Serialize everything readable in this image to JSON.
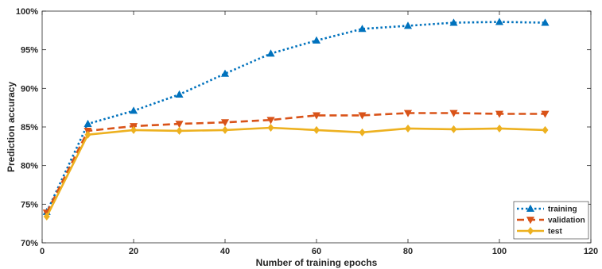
{
  "chart_data": {
    "type": "line",
    "xlabel": "Number of training epochs",
    "ylabel": "Prediction accuracy",
    "xlim": [
      0,
      120
    ],
    "ylim": [
      70,
      100
    ],
    "x_ticks": [
      0,
      20,
      40,
      60,
      80,
      100,
      120
    ],
    "y_ticks": [
      70,
      75,
      80,
      85,
      90,
      95,
      100
    ],
    "y_tick_format": "percent",
    "grid": false,
    "legend_position": "bottom-right",
    "series": [
      {
        "name": "training",
        "color": "#0072BD",
        "line_style": "dotted",
        "marker": "triangle-up",
        "x": [
          1,
          10,
          20,
          30,
          40,
          50,
          60,
          70,
          80,
          90,
          100,
          110
        ],
        "y": [
          74.0,
          85.4,
          87.1,
          89.2,
          91.9,
          94.5,
          96.2,
          97.7,
          98.1,
          98.5,
          98.6,
          98.5
        ]
      },
      {
        "name": "validation",
        "color": "#D95319",
        "line_style": "dashed",
        "marker": "triangle-down",
        "x": [
          1,
          10,
          20,
          30,
          40,
          50,
          60,
          70,
          80,
          90,
          100,
          110
        ],
        "y": [
          73.9,
          84.5,
          85.1,
          85.4,
          85.6,
          85.9,
          86.5,
          86.5,
          86.8,
          86.8,
          86.7,
          86.7
        ]
      },
      {
        "name": "test",
        "color": "#EDB120",
        "line_style": "solid",
        "marker": "diamond",
        "x": [
          1,
          10,
          20,
          30,
          40,
          50,
          60,
          70,
          80,
          90,
          100,
          110
        ],
        "y": [
          73.4,
          84.0,
          84.6,
          84.5,
          84.6,
          84.9,
          84.6,
          84.3,
          84.8,
          84.7,
          84.8,
          84.6
        ]
      }
    ]
  }
}
